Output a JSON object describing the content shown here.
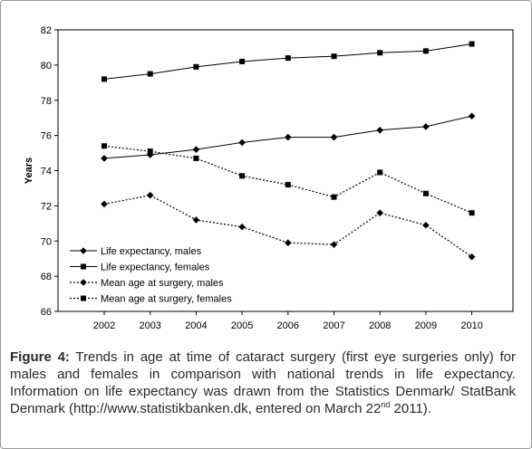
{
  "chart_data": {
    "type": "line",
    "title": "",
    "xlabel": "",
    "ylabel": "Years",
    "ylim": [
      66,
      82
    ],
    "yticks": [
      66,
      68,
      70,
      72,
      74,
      76,
      78,
      80,
      82
    ],
    "categories": [
      "2002",
      "2003",
      "2004",
      "2005",
      "2006",
      "2007",
      "2008",
      "2009",
      "2010"
    ],
    "grid": false,
    "legend_position": "bottom-left",
    "series": [
      {
        "name": "Life expectancy, males",
        "marker": "diamond",
        "style": "solid",
        "values": [
          74.7,
          74.9,
          75.2,
          75.6,
          75.9,
          75.9,
          76.3,
          76.5,
          77.1
        ]
      },
      {
        "name": "Life expectancy, females",
        "marker": "square",
        "style": "solid",
        "values": [
          79.2,
          79.5,
          79.9,
          80.2,
          80.4,
          80.5,
          80.7,
          80.8,
          81.2
        ]
      },
      {
        "name": "Mean age at surgery, males",
        "marker": "diamond",
        "style": "dotted",
        "values": [
          72.1,
          72.6,
          71.2,
          70.8,
          69.9,
          69.8,
          71.6,
          70.9,
          69.1
        ]
      },
      {
        "name": "Mean age at surgery, females",
        "marker": "square",
        "style": "dotted",
        "values": [
          75.4,
          75.1,
          74.7,
          73.7,
          73.2,
          72.5,
          73.9,
          72.7,
          71.6
        ]
      }
    ]
  },
  "caption": {
    "label": "Figure 4:",
    "text": " Trends in age at time of cataract surgery (first eye surgeries only) for males and females in comparison with national trends in life expectancy. Information on life expectancy was drawn from the Statistics Denmark/ StatBank Denmark (http://www.statistikbanken.dk, entered on March 22",
    "sup": "nd",
    "tail": " 2011)."
  }
}
